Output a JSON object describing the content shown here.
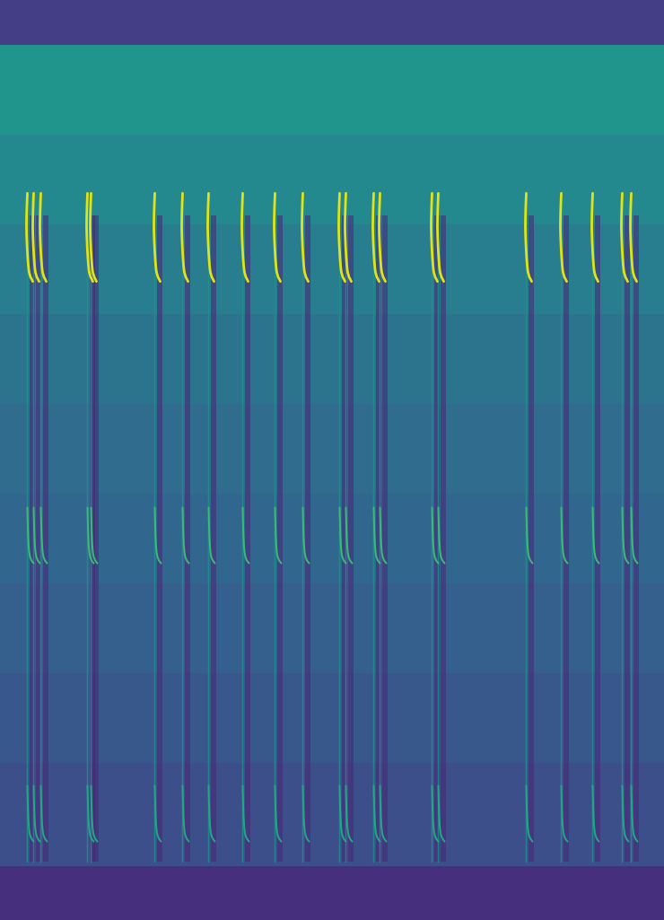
{
  "chart_data": {
    "type": "spectrogram",
    "tick_labels": false,
    "xlim": [
      0,
      740
    ],
    "ylim": [
      0,
      1025
    ],
    "zlim": [
      0,
      1
    ],
    "background": [
      {
        "f0": 975,
        "f1": 1025,
        "level": 0.18
      },
      {
        "f0": 875,
        "f1": 975,
        "level": 0.52
      },
      {
        "f0": 775,
        "f1": 875,
        "level": 0.47
      },
      {
        "f0": 675,
        "f1": 775,
        "level": 0.42
      },
      {
        "f0": 575,
        "f1": 675,
        "level": 0.38
      },
      {
        "f0": 475,
        "f1": 575,
        "level": 0.35
      },
      {
        "f0": 375,
        "f1": 475,
        "level": 0.33
      },
      {
        "f0": 275,
        "f1": 375,
        "level": 0.3
      },
      {
        "f0": 175,
        "f1": 275,
        "level": 0.27
      },
      {
        "f0": 60,
        "f1": 175,
        "level": 0.24
      },
      {
        "f0": 0,
        "f1": 60,
        "level": 0.14
      }
    ],
    "calls": [
      30,
      37,
      45,
      97,
      101,
      172,
      203,
      232,
      270,
      306,
      337,
      378,
      385,
      416,
      423,
      481,
      488,
      586,
      625,
      660,
      693,
      703
    ],
    "shadow": {
      "dx": [
        3,
        9
      ],
      "f": [
        65,
        785
      ],
      "level": 0.1
    },
    "streak": {
      "f": [
        65,
        810
      ],
      "level": 0.5
    },
    "contours": [
      {
        "level": 0.95,
        "points": [
          [
            0,
            810
          ],
          [
            -1,
            775
          ],
          [
            0,
            745
          ],
          [
            2,
            722
          ],
          [
            6,
            712
          ]
        ]
      },
      {
        "level": 0.68,
        "points": [
          [
            0,
            460
          ],
          [
            1,
            425
          ],
          [
            3,
            405
          ],
          [
            7,
            398
          ]
        ]
      },
      {
        "level": 0.6,
        "points": [
          [
            0,
            150
          ],
          [
            1,
            115
          ],
          [
            3,
            95
          ],
          [
            7,
            88
          ]
        ]
      }
    ]
  }
}
